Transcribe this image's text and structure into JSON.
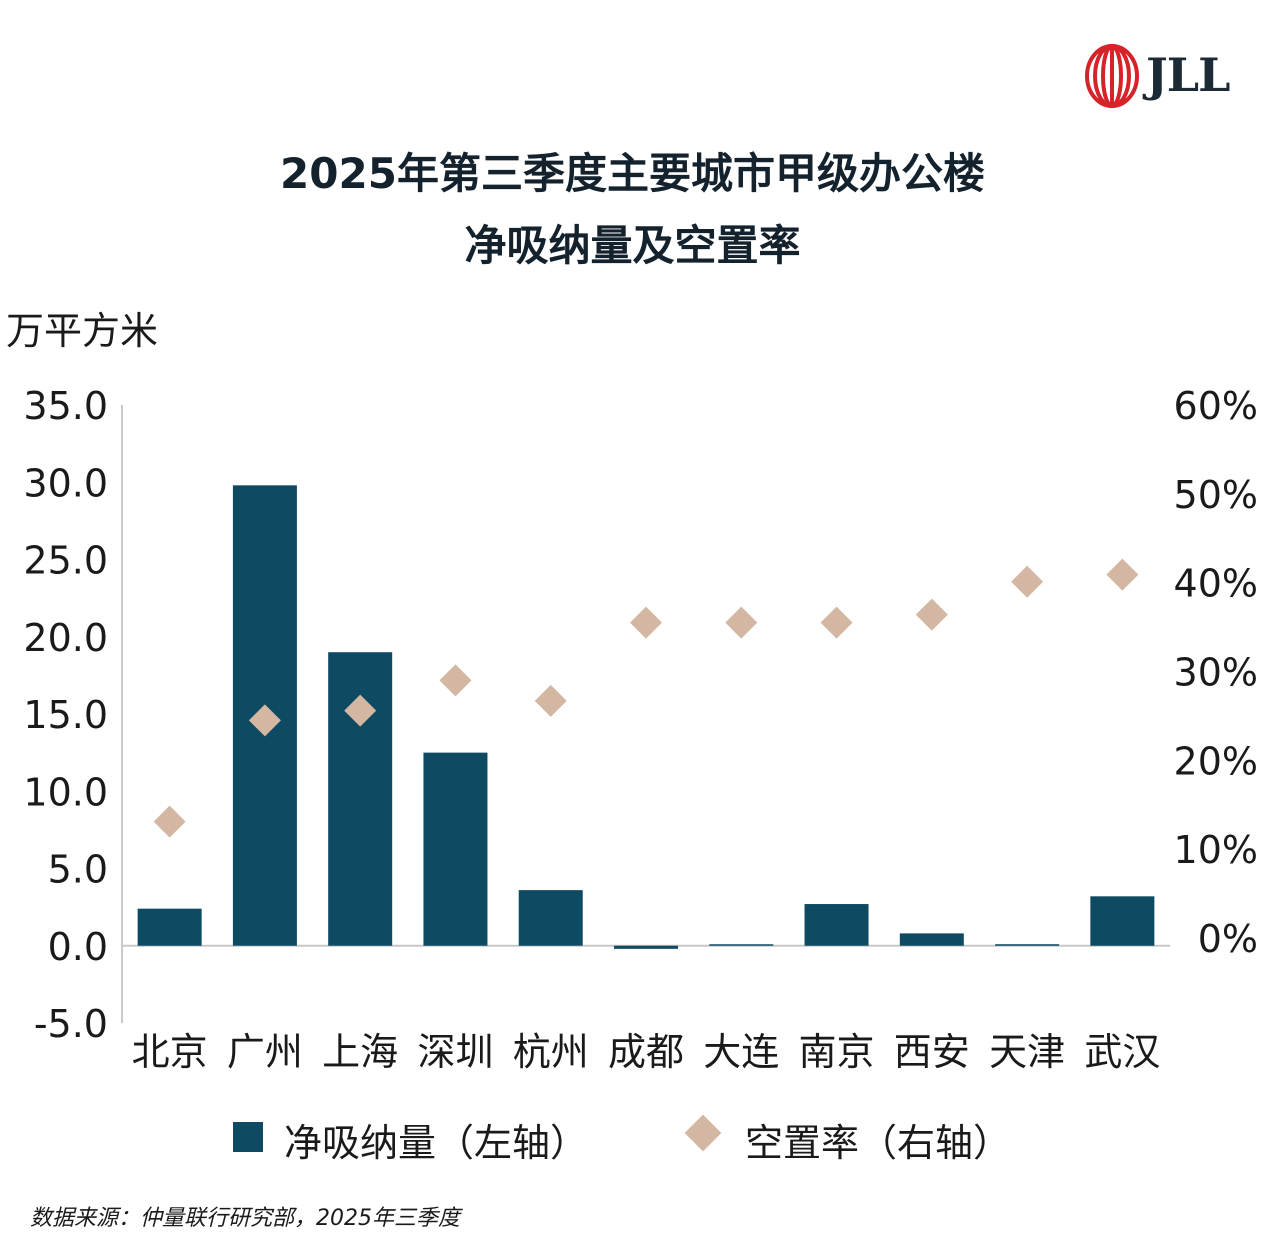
{
  "logo": {
    "text": "JLL"
  },
  "title_lines": [
    "2025年第三季度主要城市甲级办公楼",
    "净吸纳量及空置率"
  ],
  "unit_label": "万平方米",
  "legend": {
    "bar_label": "净吸纳量（左轴）",
    "marker_label": "空置率（右轴）"
  },
  "source": "数据来源：仲量联行研究部，2025年三季度",
  "colors": {
    "bar": "#0f4a63",
    "marker": "#d3b7a3",
    "axis": "#c8c8c8",
    "title": "#14222d"
  },
  "chart_data": {
    "type": "bar",
    "categories": [
      "北京",
      "广州",
      "上海",
      "深圳",
      "杭州",
      "成都",
      "大连",
      "南京",
      "西安",
      "天津",
      "武汉"
    ],
    "series": [
      {
        "name": "净吸纳量（左轴）",
        "axis": "left",
        "kind": "bar",
        "values": [
          2.4,
          29.8,
          19.0,
          12.5,
          3.6,
          -0.2,
          0.0,
          2.7,
          0.8,
          0.1,
          3.2
        ]
      },
      {
        "name": "空置率（右轴）",
        "axis": "right",
        "kind": "scatter-diamond",
        "values": [
          0.131,
          0.245,
          0.256,
          0.29,
          0.267,
          0.355,
          0.355,
          0.355,
          0.364,
          0.401,
          0.409
        ]
      }
    ],
    "y_left": {
      "lim": [
        -5,
        35
      ],
      "ticks": [
        "-5.0",
        "0.0",
        "5.0",
        "10.0",
        "15.0",
        "20.0",
        "25.0",
        "30.0",
        "35.0"
      ]
    },
    "y_right": {
      "lim": [
        0,
        0.6
      ],
      "ticks": [
        "0%",
        "10%",
        "20%",
        "30%",
        "40%",
        "50%",
        "60%"
      ]
    },
    "grid": false,
    "legend_position": "bottom"
  }
}
